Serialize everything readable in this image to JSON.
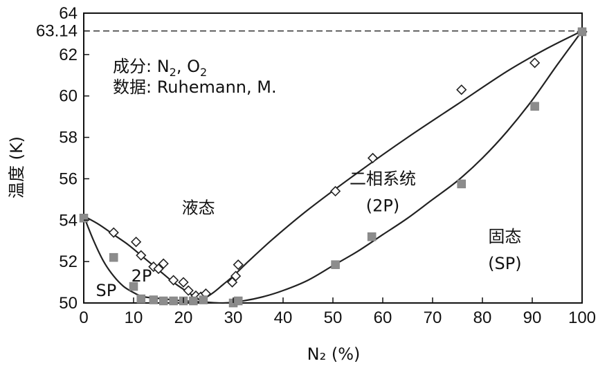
{
  "chart_data": {
    "type": "scatter",
    "xlabel": "N₂ (%)",
    "ylabel": "温度 (K)",
    "xlim": [
      0,
      100
    ],
    "ylim": [
      50,
      64
    ],
    "x_ticks": [
      "0",
      "10",
      "20",
      "30",
      "40",
      "50",
      "60",
      "70",
      "80",
      "90",
      "100"
    ],
    "y_ticks": [
      "50",
      "52",
      "54",
      "56",
      "58",
      "60",
      "62",
      "64"
    ],
    "reference_line": {
      "y": 63.14,
      "label": "63.14",
      "style": "dashed"
    },
    "legend_text": {
      "components_label": "成分: ",
      "components_n": "N",
      "components_n_sub": "2",
      "components_sep": ", O",
      "components_o_sub": "2",
      "source": "数据: Ruhemann, M."
    },
    "annotations": [
      {
        "text": "液态",
        "x": 23,
        "y": 54.6
      },
      {
        "text": "二相系统",
        "x": 60,
        "y": 56
      },
      {
        "text": "(2P)",
        "x": 60,
        "y": 54.7
      },
      {
        "text": "固态",
        "x": 84.5,
        "y": 53.2
      },
      {
        "text": "(SP)",
        "x": 84.5,
        "y": 51.9
      },
      {
        "text": "SP",
        "x": 4.5,
        "y": 50.6
      },
      {
        "text": "2P",
        "x": 11.6,
        "y": 51.3
      }
    ],
    "series": [
      {
        "marker": "diamond-open",
        "color": "#222222",
        "x": [
          6,
          10.5,
          11.5,
          14,
          15,
          16,
          18,
          20,
          21,
          22.5,
          23.5,
          24.5,
          29.8,
          30.5,
          31,
          50.5,
          58,
          75.8,
          90.5,
          100
        ],
        "y": [
          53.4,
          52.95,
          52.3,
          51.75,
          51.65,
          51.9,
          51.1,
          51.0,
          50.6,
          50.35,
          50.3,
          50.45,
          51.0,
          51.3,
          51.85,
          55.4,
          57.0,
          60.3,
          61.6,
          63.1
        ]
      },
      {
        "marker": "square-filled",
        "color": "#8c8c8c",
        "x": [
          0,
          6,
          10,
          11.5,
          14,
          16,
          18,
          20,
          22,
          24,
          30,
          31,
          50.5,
          57.8,
          75.8,
          90.5,
          100
        ],
        "y": [
          54.1,
          52.2,
          50.8,
          50.2,
          50.15,
          50.1,
          50.1,
          50.1,
          50.1,
          50.15,
          50.0,
          50.1,
          51.85,
          53.2,
          55.75,
          59.5,
          63.1
        ]
      }
    ],
    "curves": [
      {
        "name_role": "liquidus-left",
        "x": [
          0,
          3,
          6,
          9,
          12,
          15,
          18,
          21,
          23.5
        ],
        "y": [
          54.2,
          53.8,
          53.3,
          52.8,
          52.2,
          51.6,
          51.0,
          50.5,
          50.1
        ]
      },
      {
        "name_role": "liquidus-right",
        "x": [
          23.5,
          26,
          28,
          30,
          33,
          38,
          45,
          55,
          65,
          75,
          85,
          93,
          100
        ],
        "y": [
          50.1,
          50.5,
          50.9,
          51.3,
          52.0,
          53.1,
          54.5,
          56.3,
          58.0,
          59.6,
          61.2,
          62.3,
          63.14
        ]
      },
      {
        "name_role": "solidus-left",
        "x": [
          0,
          2,
          4,
          6,
          8,
          10,
          12,
          16,
          20,
          24
        ],
        "y": [
          54.2,
          53.0,
          52.0,
          51.3,
          50.8,
          50.5,
          50.3,
          50.2,
          50.1,
          50.05
        ]
      },
      {
        "name_role": "solidus-right",
        "x": [
          24,
          28,
          32,
          36,
          40,
          45,
          50,
          55,
          60,
          65,
          70,
          75,
          80,
          85,
          90,
          95,
          100
        ],
        "y": [
          50.05,
          50.0,
          50.1,
          50.3,
          50.6,
          51.1,
          51.8,
          52.5,
          53.3,
          54.1,
          55.0,
          55.9,
          57.0,
          58.3,
          59.8,
          61.5,
          63.14
        ]
      }
    ]
  }
}
